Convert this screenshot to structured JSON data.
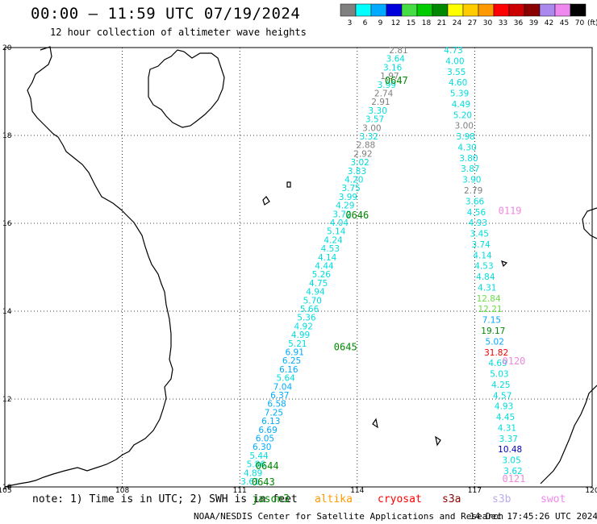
{
  "header": {
    "title": "00:00 – 11:59 UTC 07/19/2024",
    "subtitle": "12 hour collection of altimeter wave heights"
  },
  "colorbar": {
    "unit": "(ft)",
    "swatches": [
      {
        "color": "#808080",
        "label": "3"
      },
      {
        "color": "#00ffff",
        "label": "6"
      },
      {
        "color": "#00aaff",
        "label": "9"
      },
      {
        "color": "#0000dd",
        "label": "12"
      },
      {
        "color": "#44dd44",
        "label": "15"
      },
      {
        "color": "#00cc00",
        "label": "18"
      },
      {
        "color": "#008800",
        "label": "21"
      },
      {
        "color": "#ffff00",
        "label": "24"
      },
      {
        "color": "#ffcc00",
        "label": "27"
      },
      {
        "color": "#ff9900",
        "label": "30"
      },
      {
        "color": "#ff0000",
        "label": "33"
      },
      {
        "color": "#cc0000",
        "label": "36"
      },
      {
        "color": "#880000",
        "label": "39"
      },
      {
        "color": "#aa88ee",
        "label": "42"
      },
      {
        "color": "#ee88ee",
        "label": "45"
      },
      {
        "color": "#000000",
        "label": "70"
      }
    ]
  },
  "map": {
    "lon_range": [
      105,
      120
    ],
    "lat_range": [
      10,
      20
    ],
    "lon_ticks": [
      "105",
      "108",
      "111",
      "114",
      "117",
      "120"
    ],
    "lat_ticks": [
      "20",
      "18",
      "16",
      "14",
      "12",
      "10"
    ],
    "grid": "dotted"
  },
  "chart_data": {
    "type": "scatter",
    "track_A": {
      "times": [
        {
          "label": "0647",
          "lon": 115.0,
          "lat": 19.27
        },
        {
          "label": "0646",
          "lon": 114.0,
          "lat": 16.2
        },
        {
          "label": "0645",
          "lon": 113.7,
          "lat": 13.2
        },
        {
          "label": "0644",
          "lon": 111.7,
          "lat": 10.5
        },
        {
          "label": "0643",
          "lon": 111.6,
          "lat": 10.13
        }
      ],
      "values": [
        {
          "v": "2.81",
          "c": "#808080"
        },
        {
          "v": "3.64",
          "c": "#00dddd"
        },
        {
          "v": "3.16",
          "c": "#00dddd"
        },
        {
          "v": "1.97",
          "c": "#808080"
        },
        {
          "v": "3.99",
          "c": "#00dddd"
        },
        {
          "v": "2.74",
          "c": "#808080"
        },
        {
          "v": "2.91",
          "c": "#808080"
        },
        {
          "v": "3.30",
          "c": "#00dddd"
        },
        {
          "v": "3.57",
          "c": "#00dddd"
        },
        {
          "v": "3.00",
          "c": "#808080"
        },
        {
          "v": "3.32",
          "c": "#00dddd"
        },
        {
          "v": "2.88",
          "c": "#808080"
        },
        {
          "v": "2.92",
          "c": "#808080"
        },
        {
          "v": "3.02",
          "c": "#00dddd"
        },
        {
          "v": "3.83",
          "c": "#00dddd"
        },
        {
          "v": "4.20",
          "c": "#00dddd"
        },
        {
          "v": "3.75",
          "c": "#00dddd"
        },
        {
          "v": "3.99",
          "c": "#00dddd"
        },
        {
          "v": "4.29",
          "c": "#00dddd"
        },
        {
          "v": "3.72",
          "c": "#00dddd"
        },
        {
          "v": "4.04",
          "c": "#00dddd"
        },
        {
          "v": "5.14",
          "c": "#00dddd"
        },
        {
          "v": "4.24",
          "c": "#00dddd"
        },
        {
          "v": "4.53",
          "c": "#00dddd"
        },
        {
          "v": "4.14",
          "c": "#00dddd"
        },
        {
          "v": "4.44",
          "c": "#00dddd"
        },
        {
          "v": "5.26",
          "c": "#00dddd"
        },
        {
          "v": "4.75",
          "c": "#00dddd"
        },
        {
          "v": "4.94",
          "c": "#00dddd"
        },
        {
          "v": "5.70",
          "c": "#00dddd"
        },
        {
          "v": "5.66",
          "c": "#00dddd"
        },
        {
          "v": "5.36",
          "c": "#00dddd"
        },
        {
          "v": "4.92",
          "c": "#00dddd"
        },
        {
          "v": "4.99",
          "c": "#00dddd"
        },
        {
          "v": "5.21",
          "c": "#00dddd"
        },
        {
          "v": "6.91",
          "c": "#00aaff"
        },
        {
          "v": "6.25",
          "c": "#00aaff"
        },
        {
          "v": "6.16",
          "c": "#00aaff"
        },
        {
          "v": "5.64",
          "c": "#00dddd"
        },
        {
          "v": "7.04",
          "c": "#00aaff"
        },
        {
          "v": "6.37",
          "c": "#00aaff"
        },
        {
          "v": "6.58",
          "c": "#00aaff"
        },
        {
          "v": "7.25",
          "c": "#00aaff"
        },
        {
          "v": "6.13",
          "c": "#00aaff"
        },
        {
          "v": "6.69",
          "c": "#00aaff"
        },
        {
          "v": "6.05",
          "c": "#00aaff"
        },
        {
          "v": "6.30",
          "c": "#00aaff"
        },
        {
          "v": "5.44",
          "c": "#00dddd"
        },
        {
          "v": "5.86",
          "c": "#00dddd"
        },
        {
          "v": "4.89",
          "c": "#00dddd"
        },
        {
          "v": "3.61",
          "c": "#00dddd"
        }
      ]
    },
    "track_B": {
      "times": [
        {
          "label": "0119",
          "lon": 117.9,
          "lat": 16.3
        },
        {
          "label": "0120",
          "lon": 118.0,
          "lat": 12.88
        },
        {
          "label": "0121",
          "lon": 118.0,
          "lat": 10.2
        }
      ],
      "values": [
        {
          "v": "4.73",
          "c": "#00dddd"
        },
        {
          "v": "4.00",
          "c": "#00dddd"
        },
        {
          "v": "3.55",
          "c": "#00dddd"
        },
        {
          "v": "4.60",
          "c": "#00dddd"
        },
        {
          "v": "5.39",
          "c": "#00dddd"
        },
        {
          "v": "4.49",
          "c": "#00dddd"
        },
        {
          "v": "5.20",
          "c": "#00dddd"
        },
        {
          "v": "3.00",
          "c": "#808080"
        },
        {
          "v": "3.98",
          "c": "#00dddd"
        },
        {
          "v": "4.30",
          "c": "#00dddd"
        },
        {
          "v": "3.80",
          "c": "#00dddd"
        },
        {
          "v": "3.87",
          "c": "#00dddd"
        },
        {
          "v": "3.90",
          "c": "#00dddd"
        },
        {
          "v": "2.79",
          "c": "#808080"
        },
        {
          "v": "3.66",
          "c": "#00dddd"
        },
        {
          "v": "4.56",
          "c": "#00dddd"
        },
        {
          "v": "4.93",
          "c": "#00dddd"
        },
        {
          "v": "3.45",
          "c": "#00dddd"
        },
        {
          "v": "3.74",
          "c": "#00dddd"
        },
        {
          "v": "4.14",
          "c": "#00dddd"
        },
        {
          "v": "4.53",
          "c": "#00dddd"
        },
        {
          "v": "4.84",
          "c": "#00dddd"
        },
        {
          "v": "4.31",
          "c": "#00dddd"
        },
        {
          "v": "12.84",
          "c": "#66dd44"
        },
        {
          "v": "12.21",
          "c": "#66dd44"
        },
        {
          "v": "7.15",
          "c": "#00aaff"
        },
        {
          "v": "19.17",
          "c": "#008800"
        },
        {
          "v": "5.02",
          "c": "#00aaff"
        },
        {
          "v": "31.82",
          "c": "#ee0000"
        },
        {
          "v": "4.69",
          "c": "#00dddd"
        },
        {
          "v": "5.03",
          "c": "#00dddd"
        },
        {
          "v": "4.25",
          "c": "#00dddd"
        },
        {
          "v": "4.57",
          "c": "#00dddd"
        },
        {
          "v": "4.93",
          "c": "#00dddd"
        },
        {
          "v": "4.45",
          "c": "#00dddd"
        },
        {
          "v": "4.31",
          "c": "#00dddd"
        },
        {
          "v": "3.37",
          "c": "#00dddd"
        },
        {
          "v": "10.48",
          "c": "#0000bb"
        },
        {
          "v": "3.05",
          "c": "#00dddd"
        },
        {
          "v": "3.62",
          "c": "#00dddd"
        }
      ]
    }
  },
  "colors": {
    "track_A_time": "#008800",
    "track_B_time": "#ee88dd"
  },
  "footer": {
    "note": "note: 1) Time is in UTC; 2) SWH is in feet",
    "satellites": [
      {
        "name": "jason3",
        "color": "#008800"
      },
      {
        "name": "altika",
        "color": "#ff9900"
      },
      {
        "name": "cryosat",
        "color": "#ff0000"
      },
      {
        "name": "s3a",
        "color": "#880000"
      },
      {
        "name": "s3b",
        "color": "#bbaaee"
      },
      {
        "name": "swot",
        "color": "#ee88ee"
      }
    ],
    "credit": "NOAA/NESDIS Center for Satellite Applications and Research",
    "timestamp": "14 Dec 17:45:26 UTC 2024"
  }
}
